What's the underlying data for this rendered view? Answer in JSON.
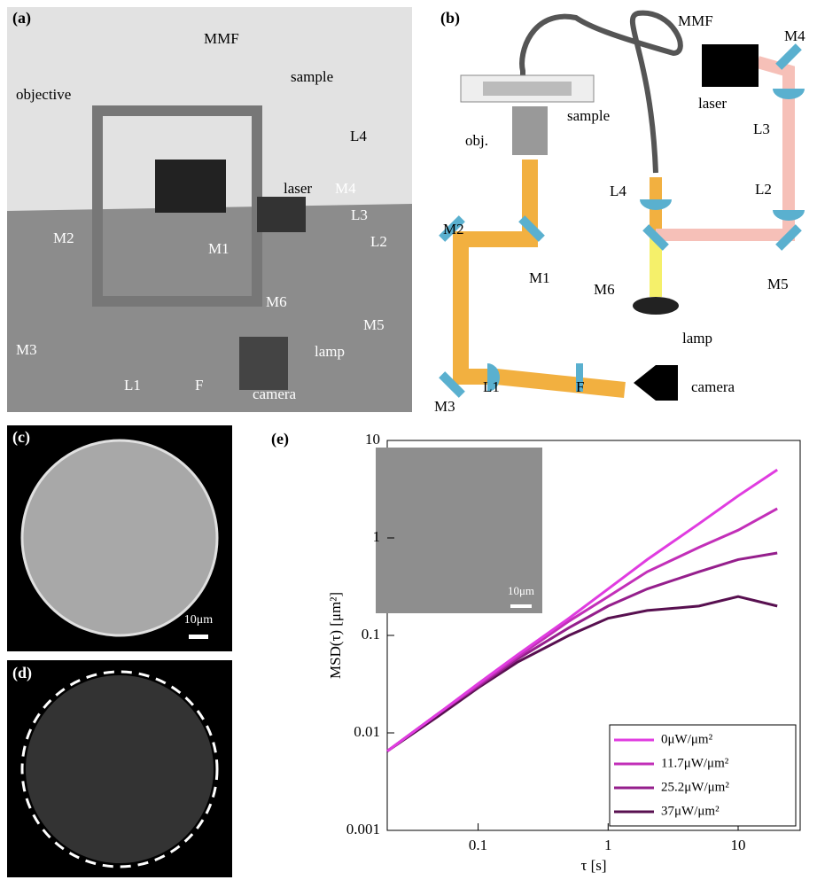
{
  "panel_a": {
    "label": "(a)",
    "annotations": [
      "MMF",
      "objective",
      "sample",
      "L4",
      "laser",
      "M4",
      "M2",
      "L3",
      "M1",
      "L2",
      "M6",
      "M3",
      "M5",
      "lamp",
      "L1",
      "F",
      "camera"
    ]
  },
  "panel_b": {
    "label": "(b)",
    "annotations": [
      "MMF",
      "sample",
      "laser",
      "M4",
      "obj.",
      "L3",
      "L4",
      "L2",
      "M2",
      "M1",
      "M6",
      "M5",
      "lamp",
      "L1",
      "F",
      "M3",
      "camera"
    ]
  },
  "panel_c": {
    "label": "(c)",
    "scale_bar": "10μm"
  },
  "panel_d": {
    "label": "(d)"
  },
  "chart_data": {
    "type": "line",
    "label": "(e)",
    "xlabel": "τ [s]",
    "ylabel": "MSD(τ) [μm²]",
    "log_x": true,
    "log_y": true,
    "x": [
      0.02,
      0.05,
      0.1,
      0.2,
      0.5,
      1,
      2,
      5,
      10,
      20
    ],
    "xlim": [
      0.02,
      30
    ],
    "ylim": [
      0.001,
      10
    ],
    "xticks": [
      0.1,
      1,
      10
    ],
    "yticks": [
      0.001,
      0.01,
      0.1,
      1,
      10
    ],
    "legend": "lower right",
    "inset_scale_bar": "10μm",
    "series": [
      {
        "name": "0μW/μm²",
        "color": "#e03ce0",
        "values": [
          0.0065,
          0.016,
          0.032,
          0.063,
          0.15,
          0.3,
          0.6,
          1.4,
          2.7,
          5
        ]
      },
      {
        "name": "11.7μW/μm²",
        "color": "#c22fb8",
        "values": [
          0.0065,
          0.016,
          0.031,
          0.06,
          0.14,
          0.25,
          0.45,
          0.8,
          1.2,
          2
        ]
      },
      {
        "name": "25.2μW/μm²",
        "color": "#951f8c",
        "values": [
          0.0065,
          0.016,
          0.03,
          0.057,
          0.12,
          0.2,
          0.3,
          0.45,
          0.6,
          0.7
        ]
      },
      {
        "name": "37μW/μm²",
        "color": "#581050",
        "values": [
          0.0065,
          0.015,
          0.029,
          0.053,
          0.1,
          0.15,
          0.18,
          0.2,
          0.25,
          0.2
        ]
      }
    ]
  }
}
